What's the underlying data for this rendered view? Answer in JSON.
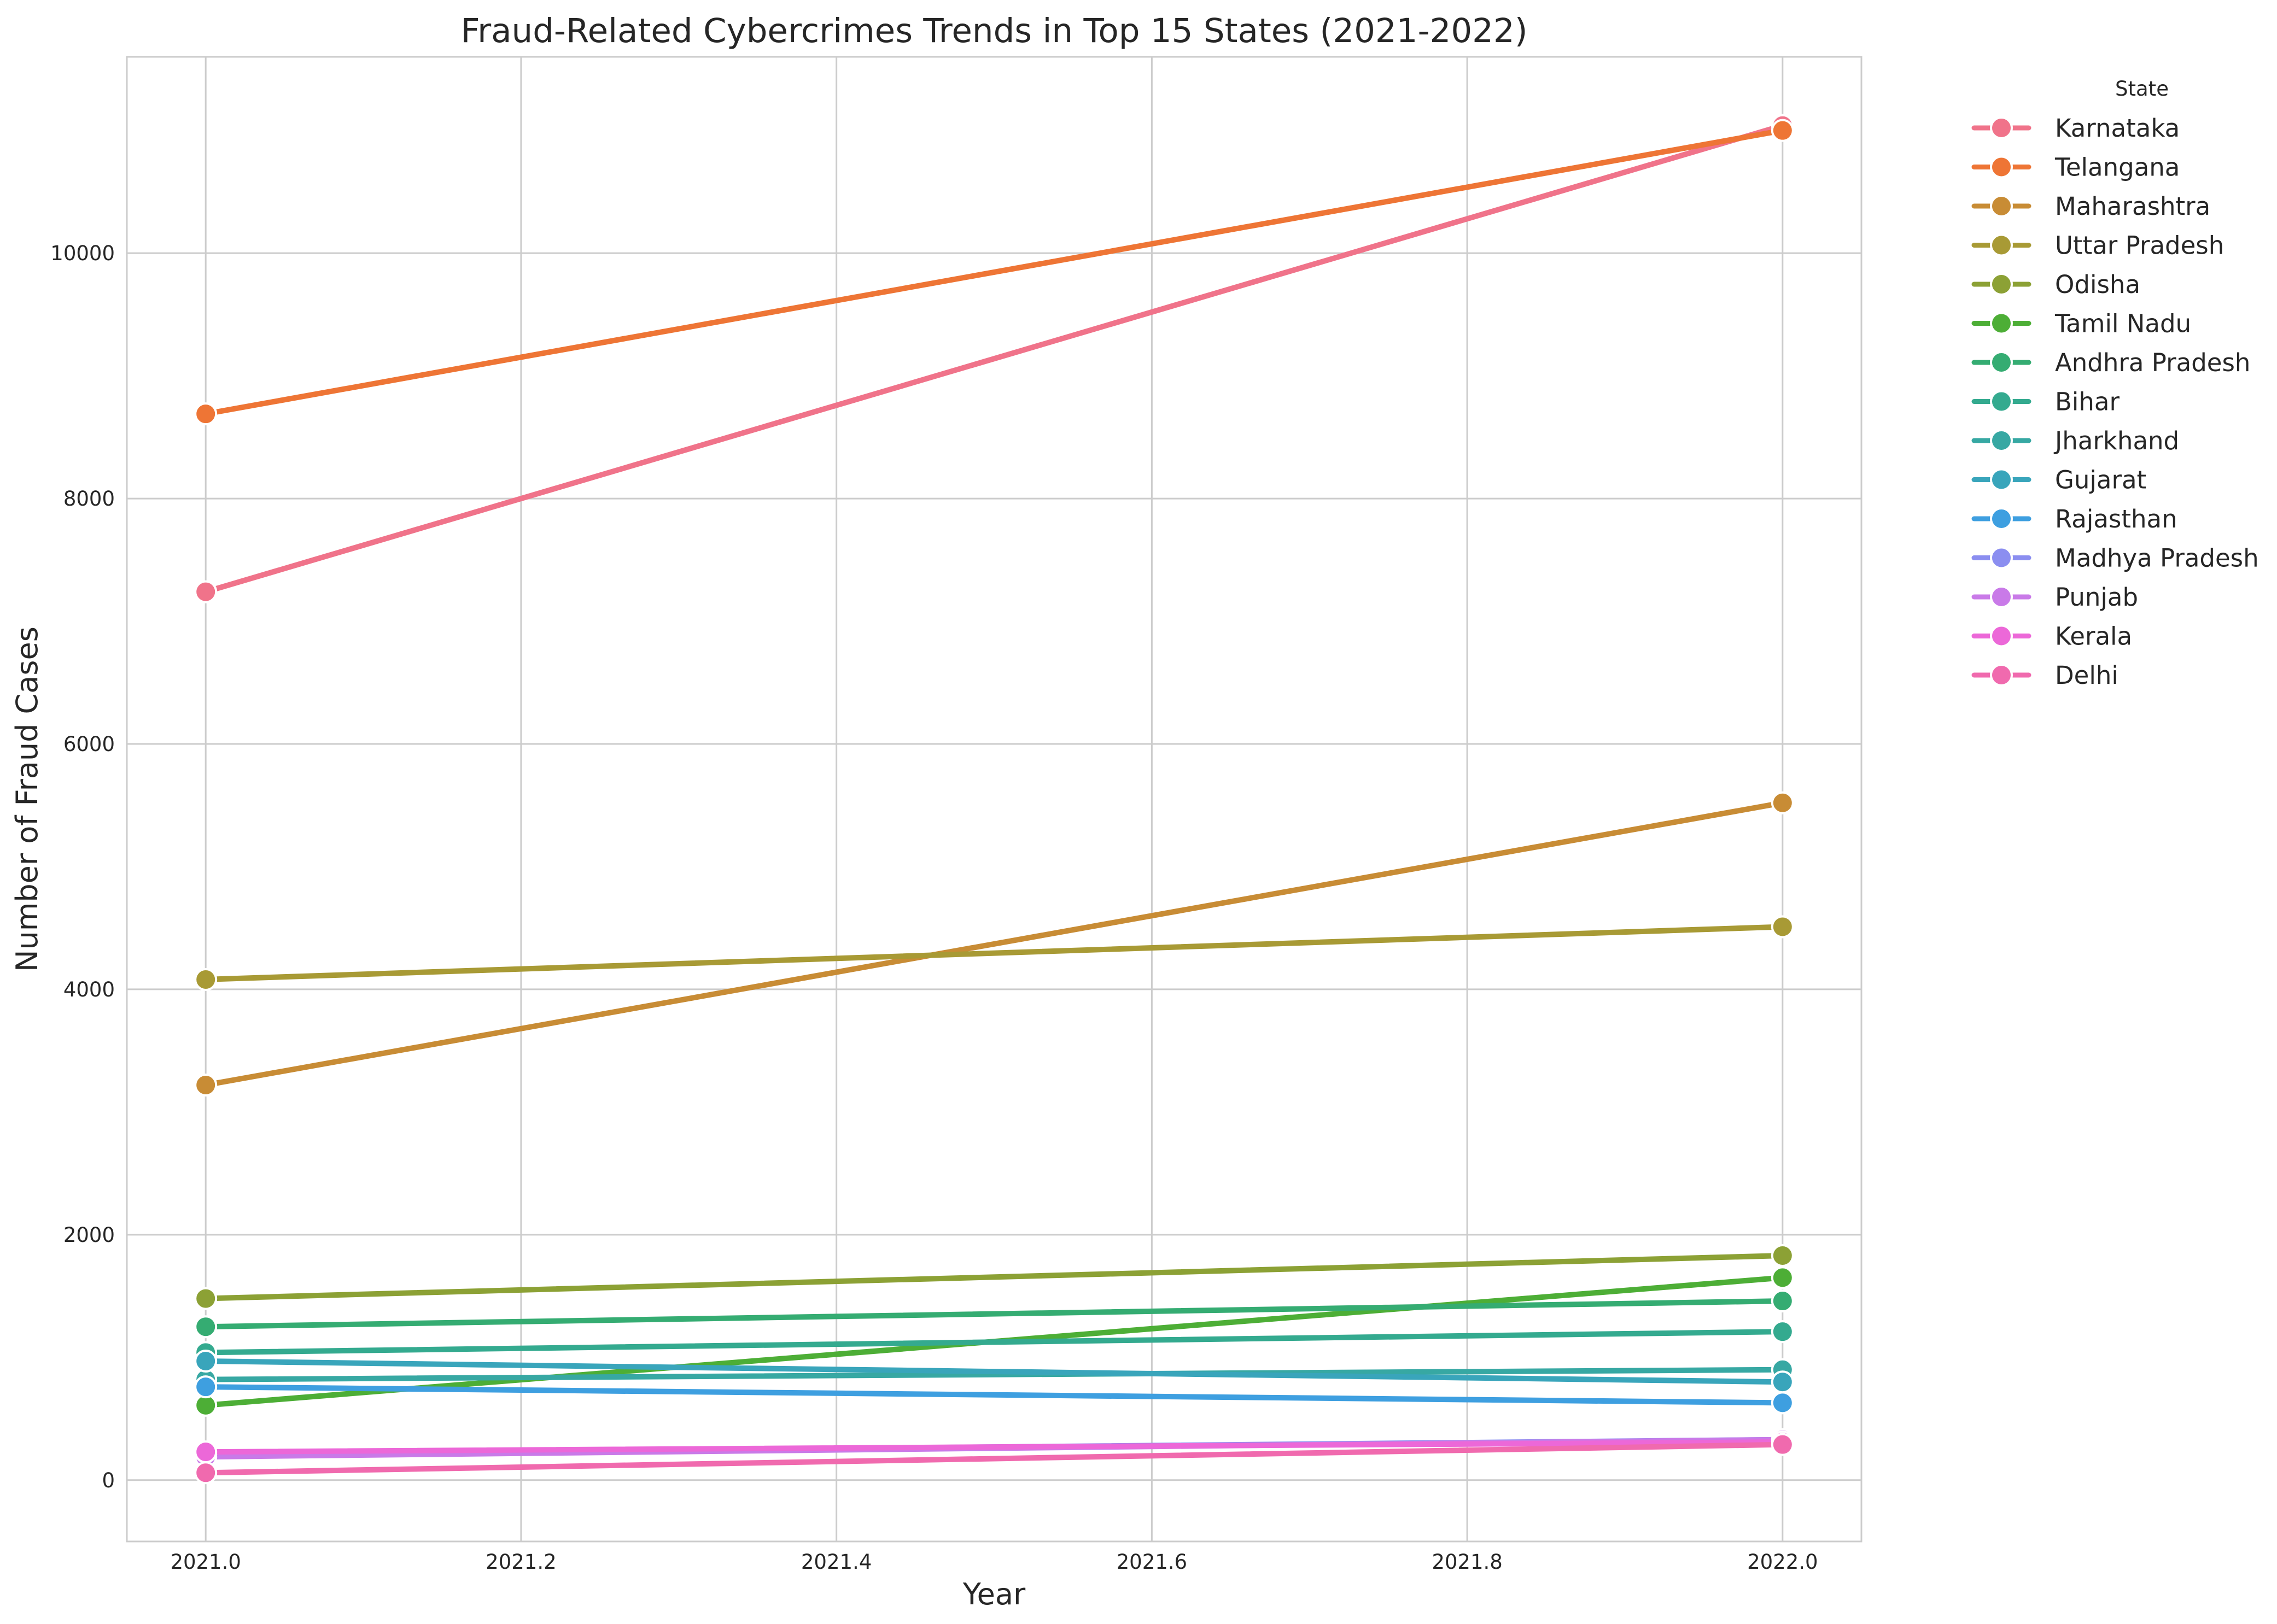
{
  "chart_data": {
    "type": "line",
    "title": "Fraud-Related Cybercrimes Trends in Top 15 States (2021-2022)",
    "xlabel": "Year",
    "ylabel": "Number of Fraud Cases",
    "x": [
      2021,
      2022
    ],
    "xlim": [
      2020.95,
      2022.05
    ],
    "ylim": [
      -500,
      11600
    ],
    "x_ticks": [
      2021.0,
      2021.2,
      2021.4,
      2021.6,
      2021.8,
      2022.0
    ],
    "x_tick_labels": [
      "2021.0",
      "2021.2",
      "2021.4",
      "2021.6",
      "2021.8",
      "2022.0"
    ],
    "y_ticks": [
      0,
      2000,
      4000,
      6000,
      8000,
      10000
    ],
    "y_tick_labels": [
      "0",
      "2000",
      "4000",
      "6000",
      "8000",
      "10000"
    ],
    "grid": true,
    "legend": {
      "title": "State",
      "placement": "outside-top-right"
    },
    "series": [
      {
        "name": "Karnataka",
        "values": [
          7240,
          11040
        ],
        "color": "#f0738a"
      },
      {
        "name": "Telangana",
        "values": [
          8690,
          11000
        ],
        "color": "#ee7535"
      },
      {
        "name": "Maharashtra",
        "values": [
          3220,
          5520
        ],
        "color": "#c88c35"
      },
      {
        "name": "Uttar Pradesh",
        "values": [
          4080,
          4510
        ],
        "color": "#a89a35"
      },
      {
        "name": "Odisha",
        "values": [
          1480,
          1830
        ],
        "color": "#8ca135"
      },
      {
        "name": "Tamil Nadu",
        "values": [
          610,
          1650
        ],
        "color": "#4dae36"
      },
      {
        "name": "Andhra Pradesh",
        "values": [
          1250,
          1460
        ],
        "color": "#35ac72"
      },
      {
        "name": "Bihar",
        "values": [
          1040,
          1210
        ],
        "color": "#34aa8f"
      },
      {
        "name": "Jharkhand",
        "values": [
          820,
          900
        ],
        "color": "#37a8a3"
      },
      {
        "name": "Gujarat",
        "values": [
          970,
          800
        ],
        "color": "#39a5bb"
      },
      {
        "name": "Rajasthan",
        "values": [
          760,
          630
        ],
        "color": "#3e9fe0"
      },
      {
        "name": "Madhya Pradesh",
        "values": [
          210,
          330
        ],
        "color": "#8b8ef0"
      },
      {
        "name": "Punjab",
        "values": [
          190,
          330
        ],
        "color": "#c97ae8"
      },
      {
        "name": "Kerala",
        "values": [
          230,
          310
        ],
        "color": "#ec68d8"
      },
      {
        "name": "Delhi",
        "values": [
          60,
          290
        ],
        "color": "#f06aae"
      }
    ]
  }
}
